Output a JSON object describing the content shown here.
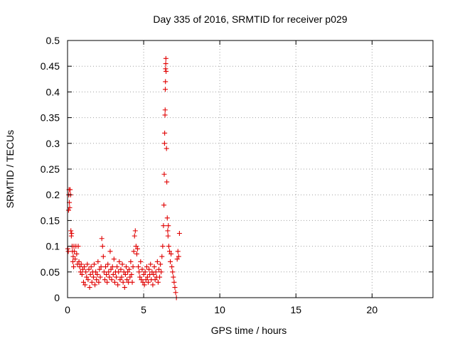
{
  "chart_data": {
    "type": "scatter",
    "title": "Day 335 of 2016, SRMTID for receiver p029",
    "xlabel": "GPS time / hours",
    "ylabel": "SRMTID / TECUs",
    "xlim": [
      0,
      24
    ],
    "ylim": [
      0,
      0.5
    ],
    "grid": true,
    "marker": "plus",
    "color": "#e00000",
    "x_ticks": [
      0,
      5,
      10,
      15,
      20
    ],
    "x_tick_labels": [
      "0",
      "5",
      "10",
      "15",
      "20"
    ],
    "y_ticks": [
      0,
      0.05,
      0.1,
      0.15,
      0.2,
      0.25,
      0.3,
      0.35,
      0.4,
      0.45,
      0.5
    ],
    "y_tick_labels": [
      "0",
      "0.05",
      "0.1",
      "0.15",
      "0.2",
      "0.25",
      "0.3",
      "0.35",
      "0.4",
      "0.45",
      "0.5"
    ],
    "series": [
      {
        "name": "SRMTID",
        "points": [
          [
            0.02,
            0.095
          ],
          [
            0.05,
            0.09
          ],
          [
            0.07,
            0.17
          ],
          [
            0.08,
            0.2
          ],
          [
            0.1,
            0.21
          ],
          [
            0.12,
            0.185
          ],
          [
            0.14,
            0.175
          ],
          [
            0.17,
            0.21
          ],
          [
            0.2,
            0.2
          ],
          [
            0.22,
            0.13
          ],
          [
            0.25,
            0.12
          ],
          [
            0.27,
            0.125
          ],
          [
            0.3,
            0.1
          ],
          [
            0.32,
            0.09
          ],
          [
            0.35,
            0.07
          ],
          [
            0.37,
            0.08
          ],
          [
            0.4,
            0.06
          ],
          [
            0.42,
            0.1
          ],
          [
            0.45,
            0.09
          ],
          [
            0.5,
            0.075
          ],
          [
            0.55,
            0.1
          ],
          [
            0.6,
            0.085
          ],
          [
            0.65,
            0.065
          ],
          [
            0.7,
            0.1
          ],
          [
            0.75,
            0.07
          ],
          [
            0.8,
            0.06
          ],
          [
            0.85,
            0.05
          ],
          [
            0.9,
            0.065
          ],
          [
            0.95,
            0.045
          ],
          [
            1.0,
            0.055
          ],
          [
            1.05,
            0.03
          ],
          [
            1.1,
            0.06
          ],
          [
            1.15,
            0.025
          ],
          [
            1.2,
            0.05
          ],
          [
            1.25,
            0.04
          ],
          [
            1.3,
            0.065
          ],
          [
            1.35,
            0.035
          ],
          [
            1.4,
            0.055
          ],
          [
            1.45,
            0.02
          ],
          [
            1.5,
            0.045
          ],
          [
            1.55,
            0.06
          ],
          [
            1.6,
            0.03
          ],
          [
            1.65,
            0.05
          ],
          [
            1.7,
            0.04
          ],
          [
            1.75,
            0.065
          ],
          [
            1.8,
            0.025
          ],
          [
            1.85,
            0.05
          ],
          [
            1.9,
            0.035
          ],
          [
            1.95,
            0.045
          ],
          [
            2.0,
            0.07
          ],
          [
            2.05,
            0.03
          ],
          [
            2.1,
            0.055
          ],
          [
            2.15,
            0.04
          ],
          [
            2.2,
            0.06
          ],
          [
            2.25,
            0.115
          ],
          [
            2.3,
            0.1
          ],
          [
            2.35,
            0.08
          ],
          [
            2.4,
            0.05
          ],
          [
            2.45,
            0.035
          ],
          [
            2.5,
            0.06
          ],
          [
            2.55,
            0.045
          ],
          [
            2.6,
            0.03
          ],
          [
            2.65,
            0.065
          ],
          [
            2.7,
            0.05
          ],
          [
            2.75,
            0.04
          ],
          [
            2.8,
            0.09
          ],
          [
            2.85,
            0.055
          ],
          [
            2.9,
            0.035
          ],
          [
            2.95,
            0.06
          ],
          [
            3.0,
            0.045
          ],
          [
            3.05,
            0.075
          ],
          [
            3.1,
            0.03
          ],
          [
            3.15,
            0.05
          ],
          [
            3.2,
            0.04
          ],
          [
            3.25,
            0.06
          ],
          [
            3.3,
            0.025
          ],
          [
            3.35,
            0.05
          ],
          [
            3.4,
            0.07
          ],
          [
            3.45,
            0.035
          ],
          [
            3.5,
            0.055
          ],
          [
            3.55,
            0.04
          ],
          [
            3.6,
            0.065
          ],
          [
            3.65,
            0.03
          ],
          [
            3.7,
            0.05
          ],
          [
            3.75,
            0.02
          ],
          [
            3.8,
            0.045
          ],
          [
            3.85,
            0.06
          ],
          [
            3.9,
            0.035
          ],
          [
            3.95,
            0.05
          ],
          [
            4.0,
            0.03
          ],
          [
            4.05,
            0.055
          ],
          [
            4.1,
            0.04
          ],
          [
            4.15,
            0.07
          ],
          [
            4.2,
            0.045
          ],
          [
            4.25,
            0.03
          ],
          [
            4.3,
            0.06
          ],
          [
            4.35,
            0.09
          ],
          [
            4.4,
            0.12
          ],
          [
            4.45,
            0.13
          ],
          [
            4.5,
            0.1
          ],
          [
            4.55,
            0.085
          ],
          [
            4.6,
            0.095
          ],
          [
            4.65,
            0.06
          ],
          [
            4.7,
            0.05
          ],
          [
            4.75,
            0.04
          ],
          [
            4.8,
            0.07
          ],
          [
            4.85,
            0.035
          ],
          [
            4.9,
            0.055
          ],
          [
            4.95,
            0.03
          ],
          [
            5.0,
            0.045
          ],
          [
            5.05,
            0.025
          ],
          [
            5.1,
            0.05
          ],
          [
            5.15,
            0.035
          ],
          [
            5.2,
            0.06
          ],
          [
            5.25,
            0.04
          ],
          [
            5.3,
            0.03
          ],
          [
            5.35,
            0.055
          ],
          [
            5.4,
            0.045
          ],
          [
            5.45,
            0.065
          ],
          [
            5.5,
            0.035
          ],
          [
            5.55,
            0.05
          ],
          [
            5.6,
            0.025
          ],
          [
            5.65,
            0.045
          ],
          [
            5.7,
            0.06
          ],
          [
            5.75,
            0.035
          ],
          [
            5.8,
            0.05
          ],
          [
            5.85,
            0.04
          ],
          [
            5.9,
            0.07
          ],
          [
            5.95,
            0.03
          ],
          [
            6.0,
            0.055
          ],
          [
            6.05,
            0.04
          ],
          [
            6.1,
            0.065
          ],
          [
            6.15,
            0.05
          ],
          [
            6.2,
            0.08
          ],
          [
            6.25,
            0.1
          ],
          [
            6.3,
            0.14
          ],
          [
            6.33,
            0.18
          ],
          [
            6.35,
            0.24
          ],
          [
            6.37,
            0.3
          ],
          [
            6.38,
            0.32
          ],
          [
            6.4,
            0.355
          ],
          [
            6.41,
            0.365
          ],
          [
            6.42,
            0.405
          ],
          [
            6.43,
            0.42
          ],
          [
            6.44,
            0.445
          ],
          [
            6.45,
            0.455
          ],
          [
            6.46,
            0.465
          ],
          [
            6.47,
            0.44
          ],
          [
            6.5,
            0.29
          ],
          [
            6.52,
            0.225
          ],
          [
            6.55,
            0.155
          ],
          [
            6.58,
            0.13
          ],
          [
            6.6,
            0.12
          ],
          [
            6.62,
            0.14
          ],
          [
            6.65,
            0.1
          ],
          [
            6.7,
            0.09
          ],
          [
            6.75,
            0.07
          ],
          [
            6.8,
            0.085
          ],
          [
            6.85,
            0.06
          ],
          [
            6.9,
            0.05
          ],
          [
            6.95,
            0.04
          ],
          [
            7.0,
            0.03
          ],
          [
            7.05,
            0.02
          ],
          [
            7.1,
            0.01
          ],
          [
            7.15,
            0.0
          ],
          [
            7.2,
            0.075
          ],
          [
            7.25,
            0.09
          ],
          [
            7.3,
            0.08
          ],
          [
            7.35,
            0.125
          ]
        ]
      }
    ]
  }
}
